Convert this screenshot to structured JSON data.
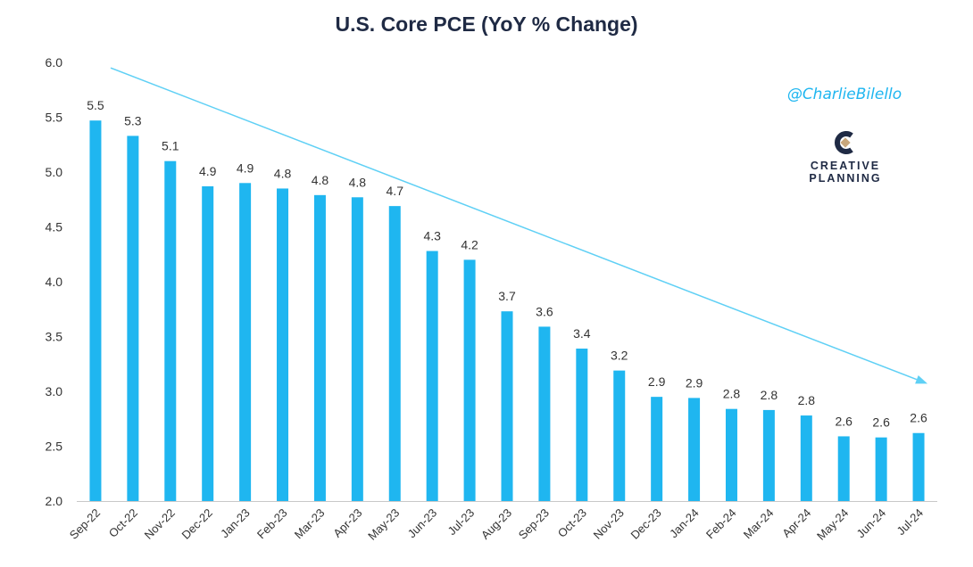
{
  "chart_data": {
    "type": "bar",
    "title": "U.S. Core PCE (YoY % Change)",
    "categories": [
      "Sep-22",
      "Oct-22",
      "Nov-22",
      "Dec-22",
      "Jan-23",
      "Feb-23",
      "Mar-23",
      "Apr-23",
      "May-23",
      "Jun-23",
      "Jul-23",
      "Aug-23",
      "Sep-23",
      "Oct-23",
      "Nov-23",
      "Dec-23",
      "Jan-24",
      "Feb-24",
      "Mar-24",
      "Apr-24",
      "May-24",
      "Jun-24",
      "Jul-24"
    ],
    "values": [
      5.47,
      5.33,
      5.1,
      4.87,
      4.9,
      4.85,
      4.79,
      4.77,
      4.69,
      4.28,
      4.2,
      3.73,
      3.59,
      3.39,
      3.19,
      2.95,
      2.94,
      2.84,
      2.83,
      2.78,
      2.59,
      2.58,
      2.62
    ],
    "data_labels": [
      "5.5",
      "5.3",
      "5.1",
      "4.9",
      "4.9",
      "4.8",
      "4.8",
      "4.8",
      "4.7",
      "4.3",
      "4.2",
      "3.7",
      "3.6",
      "3.4",
      "3.2",
      "2.9",
      "2.9",
      "2.8",
      "2.8",
      "2.8",
      "2.6",
      "2.6",
      "2.6"
    ],
    "ylim": [
      2.0,
      6.0
    ],
    "yticks": [
      "2.0",
      "2.5",
      "3.0",
      "3.5",
      "4.0",
      "4.5",
      "5.0",
      "5.5",
      "6.0"
    ],
    "xlabel": "",
    "ylabel": "",
    "grid": false,
    "legend": "none",
    "trend_arrow": {
      "start": {
        "category": "Sep-22",
        "value": 5.95
      },
      "end": {
        "category": "Jul-24",
        "value": 3.07
      }
    },
    "colors": {
      "bar": "#1fb6f0",
      "trend": "#5fd0f5",
      "axis": "#c8c8c8",
      "title": "#1f2a44"
    }
  },
  "watermark": {
    "handle": "@CharlieBilello",
    "brand_line1": "CREATIVE",
    "brand_line2": "PLANNING"
  }
}
